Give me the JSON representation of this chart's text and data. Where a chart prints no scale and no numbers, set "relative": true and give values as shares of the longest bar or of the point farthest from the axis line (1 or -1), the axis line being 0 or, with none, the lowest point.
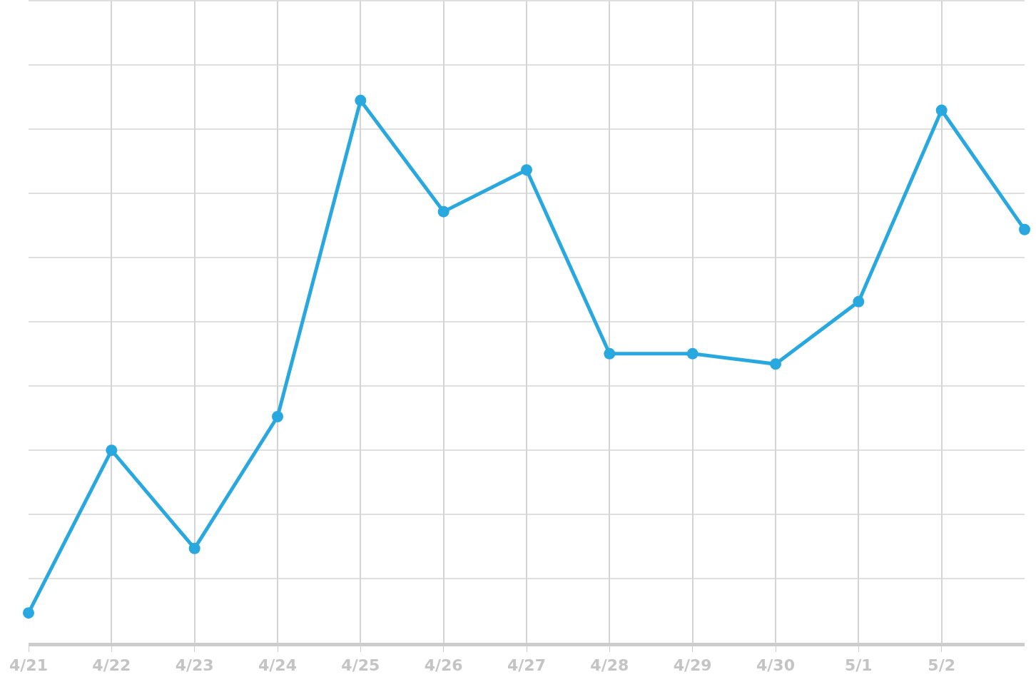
{
  "chart_data": {
    "type": "line",
    "relative": true,
    "categories": [
      "4/21",
      "4/22",
      "4/23",
      "4/24",
      "4/25",
      "4/26",
      "4/27",
      "4/28",
      "4/29",
      "4/30",
      "5/1",
      "5/2",
      null
    ],
    "series": [
      {
        "color": "#29a8e0",
        "values": [
          0.055,
          0.355,
          0.174,
          0.417,
          1,
          0.795,
          0.872,
          0.533,
          0.533,
          0.514,
          0.629,
          0.982,
          0.762
        ]
      }
    ],
    "grid": true,
    "marker": "circle",
    "line_style": "solid",
    "legend": false
  }
}
